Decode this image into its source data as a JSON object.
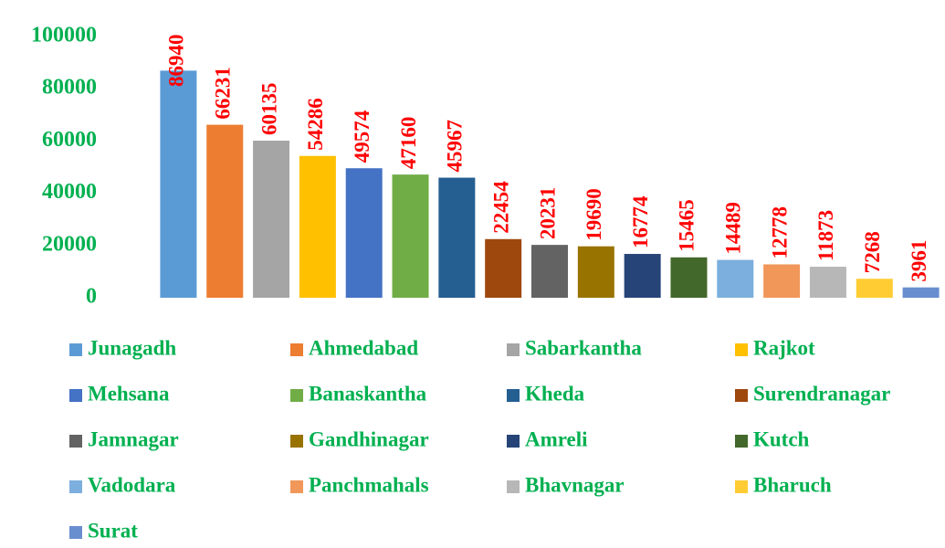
{
  "chart_data": {
    "type": "bar",
    "categories": [
      "Junagadh",
      "Ahmedabad",
      "Sabarkantha",
      "Rajkot",
      "Mehsana",
      "Banaskantha",
      "Kheda",
      "Surendranagar",
      "Jamnagar",
      "Gandhinagar",
      "Amreli",
      "Kutch",
      "Vadodara",
      "Panchmahals",
      "Bhavnagar",
      "Bharuch",
      "Surat"
    ],
    "values": [
      86940,
      66231,
      60135,
      54286,
      49574,
      47160,
      45967,
      22454,
      20231,
      19690,
      16774,
      15465,
      14489,
      12778,
      11873,
      7268,
      3961
    ],
    "colors": [
      "#5b9bd5",
      "#ed7d31",
      "#a5a5a5",
      "#ffc000",
      "#4472c4",
      "#70ad47",
      "#255e91",
      "#9e480e",
      "#636363",
      "#997300",
      "#264478",
      "#43682b",
      "#7cafdd",
      "#f1975a",
      "#b7b7b7",
      "#ffcd33",
      "#698ed0"
    ],
    "ylim": [
      0,
      100000
    ],
    "yticks": [
      0,
      20000,
      40000,
      60000,
      80000,
      100000
    ],
    "grid": false,
    "legend": "bottom",
    "data_labels": true
  }
}
